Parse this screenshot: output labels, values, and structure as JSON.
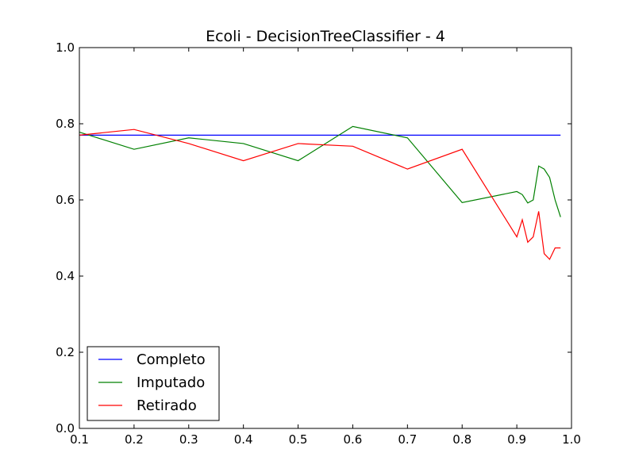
{
  "chart_data": {
    "type": "line",
    "title": "Ecoli - DecisionTreeClassifier - 4",
    "xlabel": "",
    "ylabel": "",
    "xlim": [
      0.1,
      1.0
    ],
    "ylim": [
      0.0,
      1.0
    ],
    "x_ticks": [
      "0.1",
      "0.2",
      "0.3",
      "0.4",
      "0.5",
      "0.6",
      "0.7",
      "0.8",
      "0.9",
      "1.0"
    ],
    "y_ticks": [
      "0.0",
      "0.2",
      "0.4",
      "0.6",
      "0.8",
      "1.0"
    ],
    "grid": false,
    "legend_position": "lower-left",
    "series": [
      {
        "name": "Completo",
        "color": "#0000ff",
        "x": [
          0.1,
          0.98
        ],
        "y": [
          0.77,
          0.77
        ]
      },
      {
        "name": "Imputado",
        "color": "#008000",
        "x": [
          0.1,
          0.2,
          0.3,
          0.4,
          0.5,
          0.6,
          0.7,
          0.8,
          0.9,
          0.91,
          0.92,
          0.93,
          0.94,
          0.95,
          0.96,
          0.97,
          0.98
        ],
        "y": [
          0.778,
          0.733,
          0.763,
          0.748,
          0.703,
          0.793,
          0.763,
          0.593,
          0.622,
          0.614,
          0.592,
          0.6,
          0.689,
          0.681,
          0.659,
          0.6,
          0.555
        ]
      },
      {
        "name": "Retirado",
        "color": "#ff0000",
        "x": [
          0.1,
          0.2,
          0.3,
          0.4,
          0.5,
          0.6,
          0.7,
          0.8,
          0.9,
          0.91,
          0.92,
          0.93,
          0.94,
          0.95,
          0.96,
          0.97,
          0.98
        ],
        "y": [
          0.77,
          0.785,
          0.748,
          0.703,
          0.748,
          0.741,
          0.681,
          0.733,
          0.503,
          0.548,
          0.489,
          0.503,
          0.57,
          0.459,
          0.444,
          0.474,
          0.474
        ]
      }
    ]
  }
}
